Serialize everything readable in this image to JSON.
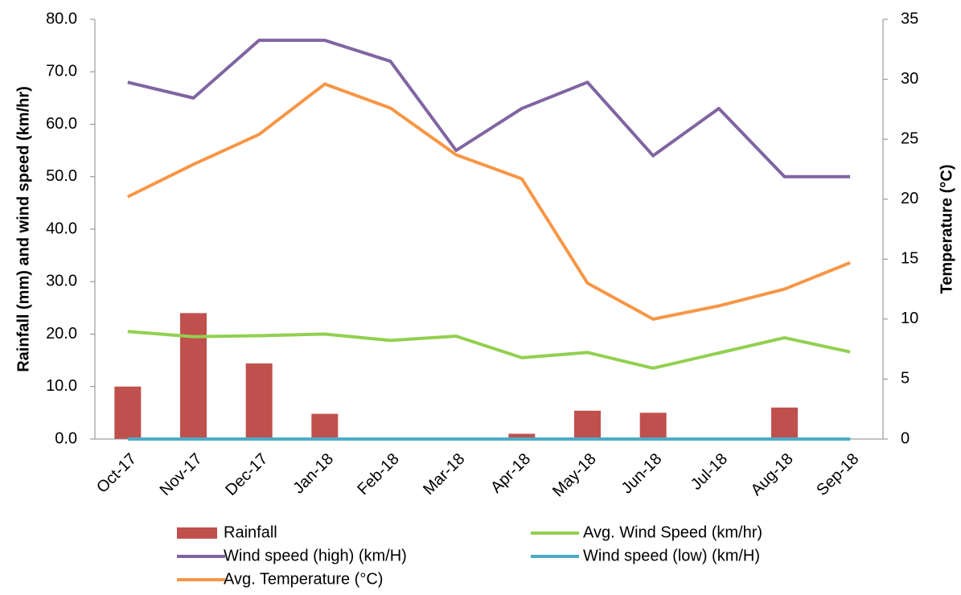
{
  "chart_data": {
    "type": "bar-line",
    "y_label": "Rainfall (mm)  and wind speed (km/hr)",
    "y2_label": "Temperature  (°C)",
    "categories": [
      "Oct-17",
      "Nov-17",
      "Dec-17",
      "Jan-18",
      "Feb-18",
      "Mar-18",
      "Apr-18",
      "May-18",
      "Jun-18",
      "Jul-18",
      "Aug-18",
      "Sep-18"
    ],
    "series": [
      {
        "name": "Rainfall",
        "type": "bar",
        "color": "#c0504d",
        "values": [
          10,
          24,
          14.4,
          4.8,
          0.2,
          0,
          1.0,
          5.4,
          5.0,
          0.2,
          6.0,
          0
        ]
      },
      {
        "name": "Avg. Wind Speed (km/hr)",
        "type": "line",
        "color": "#92d050",
        "values": [
          20.5,
          19.5,
          19.7,
          20,
          18.8,
          19.6,
          15.5,
          16.5,
          13.5,
          16.4,
          19.3,
          16.6
        ]
      },
      {
        "name": "Wind speed (high) (km/H)",
        "type": "line",
        "color": "#8064a2",
        "values": [
          68,
          65,
          76,
          76,
          72,
          55,
          63,
          68,
          54,
          63,
          50,
          50
        ]
      },
      {
        "name": "Wind speed (low) (km/H)",
        "type": "line",
        "color": "#4bacc6",
        "values": [
          0,
          0,
          0,
          0,
          0,
          0,
          0,
          0,
          0,
          0,
          0,
          0
        ]
      },
      {
        "name": "Avg. Temperature (°C)",
        "type": "line",
        "axis": "y2",
        "color": "#f79646",
        "values": [
          20.2,
          22.9,
          25.4,
          29.6,
          27.6,
          23.7,
          21.7,
          13.0,
          10.0,
          11.1,
          12.5,
          14.7
        ]
      }
    ],
    "ylim": [
      0,
      80
    ],
    "yticks": [
      {
        "value": 0,
        "label": "0.0"
      },
      {
        "value": 10,
        "label": "10.0"
      },
      {
        "value": 20,
        "label": "20.0"
      },
      {
        "value": 30,
        "label": "30.0"
      },
      {
        "value": 40,
        "label": "40.0"
      },
      {
        "value": 50,
        "label": "50.0"
      },
      {
        "value": 60,
        "label": "60.0"
      },
      {
        "value": 70,
        "label": "70.0"
      },
      {
        "value": 80,
        "label": "80.0"
      }
    ],
    "y2lim": [
      0,
      35
    ],
    "y2ticks": [
      0,
      5,
      10,
      15,
      20,
      25,
      30,
      35
    ],
    "grid": false,
    "legend": "bottom"
  }
}
